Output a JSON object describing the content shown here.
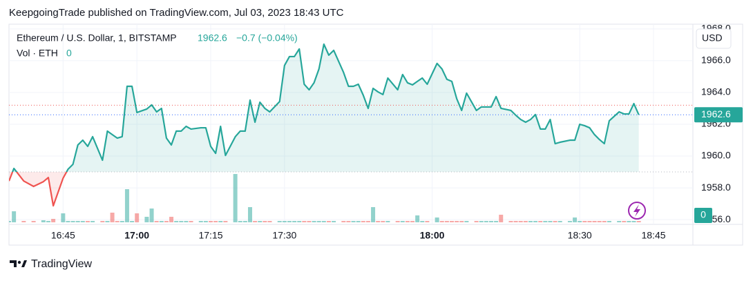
{
  "header": "KeepgoingTrade published on TradingView.com, Jul 03, 2023 18:43 UTC",
  "footer": "TradingView",
  "chart_data": {
    "type": "line",
    "legend": {
      "symbol": "Ethereum / U.S. Dollar, 1, BITSTAMP",
      "price": "1962.6",
      "change": "−0.7 (−0.04%)",
      "volume_name": "Vol · ETH",
      "volume_last": "0"
    },
    "currency": "USD",
    "x": [
      "16:34",
      "16:35",
      "16:37",
      "16:39",
      "16:41",
      "16:42",
      "16:43",
      "16:45",
      "16:46",
      "16:47",
      "16:48",
      "16:49",
      "16:50",
      "16:51",
      "16:53",
      "16:54",
      "16:55",
      "16:56",
      "16:57",
      "16:58",
      "16:59",
      "17:00",
      "17:02",
      "17:03",
      "17:04",
      "17:05",
      "17:06",
      "17:07",
      "17:08",
      "17:09",
      "17:10",
      "17:11",
      "17:13",
      "17:14",
      "17:15",
      "17:16",
      "17:17",
      "17:18",
      "17:20",
      "17:21",
      "17:22",
      "17:23",
      "17:24",
      "17:25",
      "17:26",
      "17:27",
      "17:29",
      "17:30",
      "17:31",
      "17:32",
      "17:33",
      "17:34",
      "17:35",
      "17:36",
      "17:37",
      "17:38",
      "17:39",
      "17:40",
      "17:42",
      "17:43",
      "17:44",
      "17:45",
      "17:46",
      "17:47",
      "17:48",
      "17:49",
      "17:50",
      "17:51",
      "17:53",
      "17:54",
      "17:55",
      "17:56",
      "17:57",
      "17:58",
      "17:59",
      "18:01",
      "18:02",
      "18:03",
      "18:04",
      "18:05",
      "18:06",
      "18:07",
      "18:09",
      "18:10",
      "18:11",
      "18:12",
      "18:13",
      "18:14",
      "18:16",
      "18:17",
      "18:18",
      "18:19",
      "18:20",
      "18:21",
      "18:22",
      "18:23",
      "18:24",
      "18:25",
      "18:26",
      "18:28",
      "18:29",
      "18:30",
      "18:31",
      "18:32",
      "18:33",
      "18:34",
      "18:35",
      "18:36",
      "18:38",
      "18:39",
      "18:40",
      "18:41",
      "18:42"
    ],
    "values": [
      1958.43,
      1959.22,
      1958.43,
      1958.09,
      1958.39,
      1958.65,
      1956.87,
      1958.61,
      1959.17,
      1959.48,
      1960.7,
      1961.0,
      1960.61,
      1961.22,
      1959.74,
      1961.57,
      1961.35,
      1961.13,
      1961.22,
      1964.39,
      1964.39,
      1962.74,
      1962.96,
      1963.22,
      1962.78,
      1963.0,
      1961.13,
      1960.7,
      1961.57,
      1961.57,
      1961.87,
      1961.7,
      1961.78,
      1961.78,
      1960.61,
      1960.17,
      1961.87,
      1960.04,
      1961.22,
      1961.57,
      1961.57,
      1963.52,
      1962.13,
      1963.39,
      1963.0,
      1962.78,
      1963.43,
      1965.7,
      1966.26,
      1966.26,
      1966.74,
      1964.52,
      1964.17,
      1964.61,
      1965.48,
      1967.04,
      1966.35,
      1966.65,
      1965.26,
      1964.39,
      1964.39,
      1964.52,
      1963.83,
      1963.0,
      1964.26,
      1964.04,
      1963.87,
      1964.91,
      1964.17,
      1965.13,
      1964.61,
      1964.48,
      1964.7,
      1964.91,
      1964.52,
      1965.83,
      1965.48,
      1964.83,
      1964.7,
      1963.61,
      1962.87,
      1963.96,
      1962.87,
      1963.09,
      1963.09,
      1963.09,
      1963.74,
      1963.0,
      1962.87,
      1962.57,
      1962.3,
      1962.13,
      1962.3,
      1962.61,
      1961.7,
      1961.7,
      1962.3,
      1960.78,
      1960.87,
      1961.0,
      1961.0,
      1962.0,
      1961.91,
      1961.78,
      1961.35,
      1961.04,
      1960.78,
      1962.22,
      1962.78,
      1962.65,
      1962.65,
      1963.3,
      1962.6
    ],
    "volume": [
      2,
      16,
      2,
      2,
      3,
      2,
      5,
      13,
      2,
      2,
      2,
      2,
      2,
      2,
      2,
      2,
      14,
      2,
      2,
      48,
      2,
      13,
      8,
      20,
      2,
      2,
      2,
      8,
      2,
      2,
      2,
      2,
      2,
      2,
      2,
      2,
      2,
      2,
      70,
      2,
      2,
      22,
      2,
      2,
      2,
      2,
      2,
      2,
      2,
      2,
      2,
      2,
      2,
      2,
      2,
      2,
      2,
      2,
      2,
      2,
      2,
      2,
      2,
      2,
      22,
      2,
      2,
      2,
      2,
      2,
      2,
      2,
      10,
      2,
      2,
      7,
      2,
      2,
      2,
      2,
      2,
      2,
      2,
      2,
      2,
      2,
      2,
      11,
      2,
      2,
      2,
      2,
      2,
      2,
      2,
      2,
      2,
      2,
      2,
      2,
      7,
      2,
      2,
      2,
      2,
      2,
      2,
      2,
      2,
      2,
      2,
      2,
      2
    ],
    "vlim": [
      0,
      75
    ],
    "baseline": 1959.0,
    "prev_close": 1963.2,
    "up_color": "#26a69a",
    "down_color": "#ef5350",
    "xlim": [
      "16:34",
      "18:53"
    ],
    "xticks": [
      "16:45",
      "17:00",
      "17:15",
      "17:30",
      "18:00",
      "18:30",
      "18:45"
    ],
    "ylim": [
      1955.7,
      1968.3
    ],
    "yticks": [
      {
        "value": 1956,
        "label": "1956.0"
      },
      {
        "value": 1958,
        "label": "1958.0"
      },
      {
        "value": 1960,
        "label": "1960.0"
      },
      {
        "value": 1962,
        "label": "1962.0"
      },
      {
        "value": 1964,
        "label": "1964.0"
      },
      {
        "value": 1966,
        "label": "1966.0"
      },
      {
        "value": 1968,
        "label": "1968.0"
      }
    ]
  }
}
